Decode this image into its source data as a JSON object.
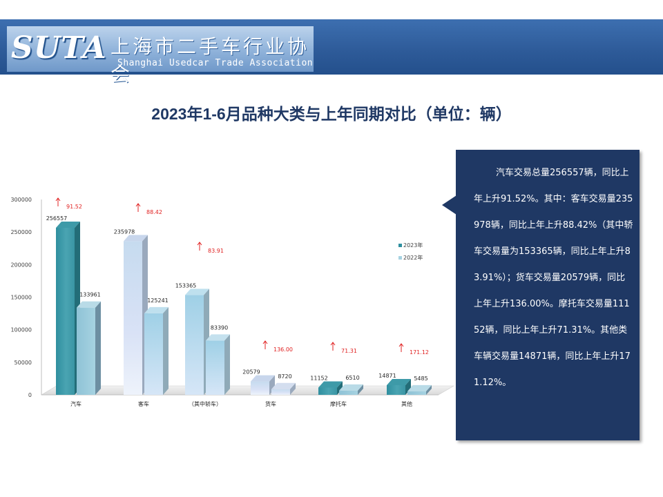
{
  "header": {
    "logo_text": "SUTA",
    "org_name_cn": "上海市二手车行业协会",
    "org_name_en": "Shanghai Usedcar Trade Association"
  },
  "slide_title": "2023年1-6月品种大类与上年同期对比（单位：辆）",
  "note_text": "汽车交易总量256557辆，同比上年上升91.52%。其中：客车交易量235978辆，同比上年上升88.42%（其中轿车交易量为153365辆，同比上年上升83.91%）；货车交易量20579辆，同比上年上升136.00%。摩托车交易量11152辆，同比上年上升71.31%。其他类车辆交易量14871辆，同比上年上升171.12%。",
  "chart_data": {
    "type": "bar",
    "categories": [
      "汽车",
      "客车",
      "（其中轿车）",
      "货车",
      "摩托车",
      "其他"
    ],
    "series": [
      {
        "name": "2023年",
        "values": [
          256557,
          235978,
          153365,
          20579,
          11152,
          14871
        ]
      },
      {
        "name": "2022年",
        "values": [
          133961,
          125241,
          83390,
          8720,
          6510,
          5485
        ]
      }
    ],
    "growth_labels": [
      "91.52",
      "88.42",
      "83.91",
      "136.00",
      "71.31",
      "171.12"
    ],
    "y_ticks": [
      "0",
      "50000",
      "100000",
      "150000",
      "200000",
      "250000",
      "300000"
    ],
    "ylim": [
      0,
      300000
    ],
    "legend_position": "right",
    "colors": {
      "up_arrow": "#e02020",
      "growth_text": "#e02020"
    }
  }
}
